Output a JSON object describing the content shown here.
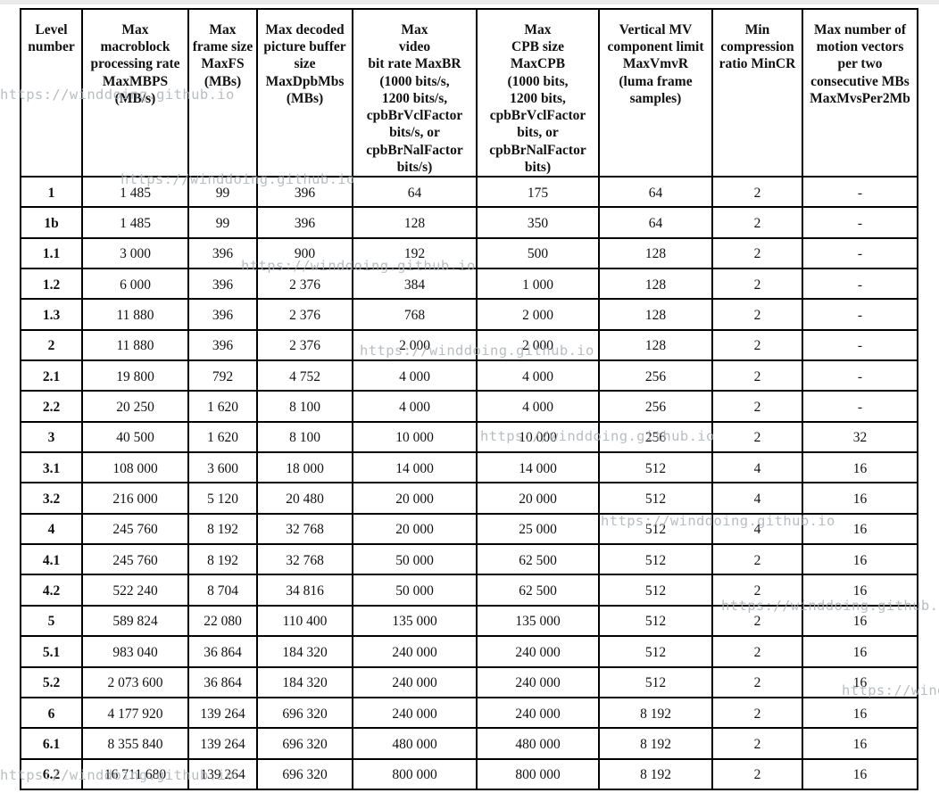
{
  "watermark": {
    "text": "https://winddoing.github.io"
  },
  "table": {
    "headers": [
      "Level\nnumber",
      "Max\nmacroblock\nprocessing rate\nMaxMBPS\n(MB/s)",
      "Max\nframe size\nMaxFS\n(MBs)",
      "Max decoded\npicture buffer\nsize\nMaxDpbMbs\n(MBs)",
      "Max\nvideo\nbit rate MaxBR\n(1000 bits/s,\n1200 bits/s,\ncpbBrVclFactor\nbits/s, or\ncpbBrNalFactor\nbits/s)",
      "Max\nCPB size\nMaxCPB\n(1000 bits,\n1200 bits,\ncpbBrVclFactor\nbits, or\ncpbBrNalFactor\nbits)",
      "Vertical MV\ncomponent limit\nMaxVmvR\n(luma frame\nsamples)",
      "Min\ncompression\nratio MinCR",
      "Max number of\nmotion vectors\nper two\nconsecutive MBs\nMaxMvsPer2Mb"
    ],
    "rows": [
      {
        "cells": [
          "1",
          "1 485",
          "99",
          "396",
          "64",
          "175",
          "64",
          "2",
          "-"
        ]
      },
      {
        "cells": [
          "1b",
          "1 485",
          "99",
          "396",
          "128",
          "350",
          "64",
          "2",
          "-"
        ]
      },
      {
        "cells": [
          "1.1",
          "3 000",
          "396",
          "900",
          "192",
          "500",
          "128",
          "2",
          "-"
        ]
      },
      {
        "cells": [
          "1.2",
          "6 000",
          "396",
          "2 376",
          "384",
          "1 000",
          "128",
          "2",
          "-"
        ]
      },
      {
        "cells": [
          "1.3",
          "11 880",
          "396",
          "2 376",
          "768",
          "2 000",
          "128",
          "2",
          "-"
        ]
      },
      {
        "cells": [
          "2",
          "11 880",
          "396",
          "2 376",
          "2 000",
          "2 000",
          "128",
          "2",
          "-"
        ]
      },
      {
        "cells": [
          "2.1",
          "19 800",
          "792",
          "4 752",
          "4 000",
          "4 000",
          "256",
          "2",
          "-"
        ]
      },
      {
        "cells": [
          "2.2",
          "20 250",
          "1 620",
          "8 100",
          "4 000",
          "4 000",
          "256",
          "2",
          "-"
        ]
      },
      {
        "cells": [
          "3",
          "40 500",
          "1 620",
          "8 100",
          "10 000",
          "10 000",
          "256",
          "2",
          "32"
        ]
      },
      {
        "cells": [
          "3.1",
          "108 000",
          "3 600",
          "18 000",
          "14 000",
          "14 000",
          "512",
          "4",
          "16"
        ]
      },
      {
        "cells": [
          "3.2",
          "216 000",
          "5 120",
          "20 480",
          "20 000",
          "20 000",
          "512",
          "4",
          "16"
        ]
      },
      {
        "cells": [
          "4",
          "245 760",
          "8 192",
          "32 768",
          "20 000",
          "25 000",
          "512",
          "4",
          "16"
        ]
      },
      {
        "cells": [
          "4.1",
          "245 760",
          "8 192",
          "32 768",
          "50 000",
          "62 500",
          "512",
          "2",
          "16"
        ]
      },
      {
        "cells": [
          "4.2",
          "522 240",
          "8 704",
          "34 816",
          "50 000",
          "62 500",
          "512",
          "2",
          "16"
        ]
      },
      {
        "cells": [
          "5",
          "589 824",
          "22 080",
          "110 400",
          "135 000",
          "135 000",
          "512",
          "2",
          "16"
        ]
      },
      {
        "cells": [
          "5.1",
          "983 040",
          "36 864",
          "184 320",
          "240 000",
          "240 000",
          "512",
          "2",
          "16"
        ]
      },
      {
        "cells": [
          "5.2",
          "2 073 600",
          "36 864",
          "184 320",
          "240 000",
          "240 000",
          "512",
          "2",
          "16"
        ]
      },
      {
        "cells": [
          "6",
          "4 177 920",
          "139 264",
          "696 320",
          "240 000",
          "240 000",
          "8 192",
          "2",
          "16"
        ]
      },
      {
        "cells": [
          "6.1",
          "8 355 840",
          "139 264",
          "696 320",
          "480 000",
          "480 000",
          "8 192",
          "2",
          "16"
        ]
      },
      {
        "cells": [
          "6.2",
          "16 711 680",
          "139 264",
          "696 320",
          "800 000",
          "800 000",
          "8 192",
          "2",
          "16"
        ]
      }
    ]
  }
}
